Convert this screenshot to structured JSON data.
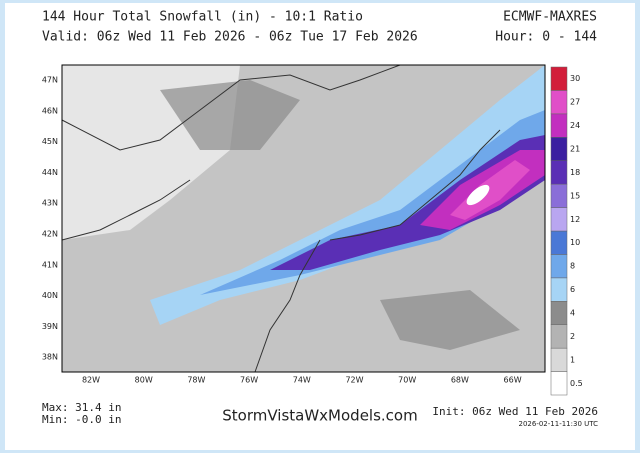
{
  "header": {
    "title": "144 Hour Total Snowfall (in) - 10:1 Ratio",
    "valid": "Valid: 06z Wed 11 Feb 2026 - 06z Tue 17 Feb 2026",
    "model": "ECMWF-MAXRES",
    "hours": "Hour: 0 - 144"
  },
  "map": {
    "lat_labels": [
      "47N",
      "46N",
      "45N",
      "44N",
      "43N",
      "42N",
      "41N",
      "40N",
      "39N",
      "38N"
    ],
    "lon_labels": [
      "82W",
      "80W",
      "78W",
      "76W",
      "74W",
      "72W",
      "70W",
      "68W",
      "66W"
    ]
  },
  "colorbar": {
    "levels": [
      0.5,
      1,
      2,
      4,
      6,
      8,
      10,
      12,
      15,
      18,
      21,
      24,
      27,
      30
    ],
    "colors": [
      "#ffffff",
      "#d9d9d9",
      "#b3b3b3",
      "#8c8c8c",
      "#a6d4f5",
      "#6fa8ea",
      "#4a78d6",
      "#b9a6f0",
      "#8a6ed8",
      "#5a2fb5",
      "#3b1fa0",
      "#c22fbf",
      "#e04fc8",
      "#d21e3a"
    ]
  },
  "footer": {
    "max": "Max: 31.4 in",
    "min": "Min: -0.0 in",
    "site": "StormVistaWxModels.com",
    "init": "Init: 06z Wed 11 Feb 2026",
    "stamp": "2026-02-11-11:30 UTC"
  }
}
